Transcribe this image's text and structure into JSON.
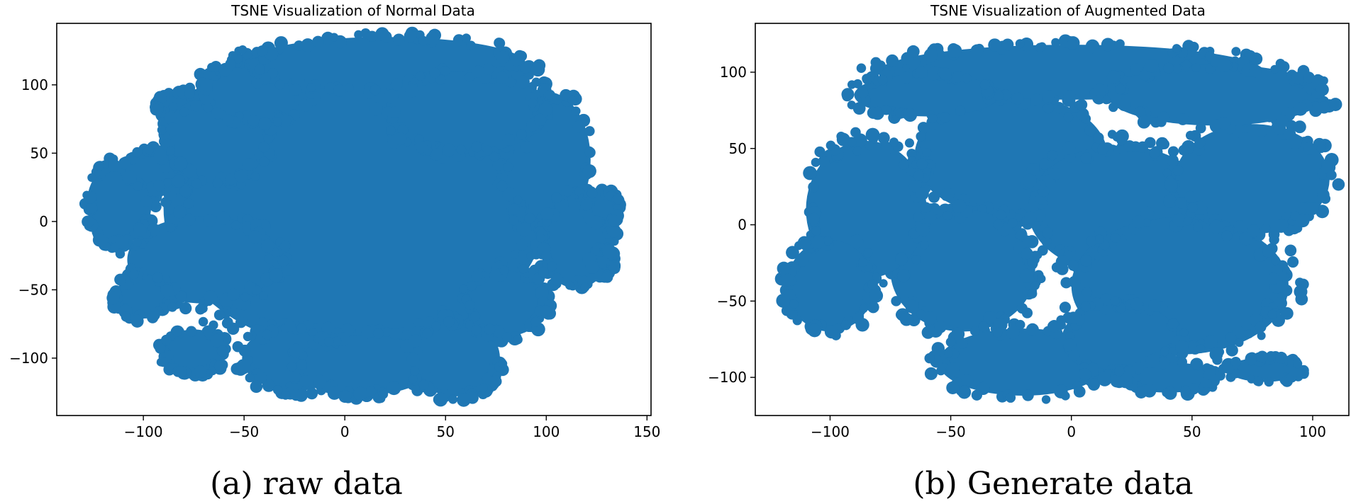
{
  "chart_data": [
    {
      "type": "scatter",
      "title": "TSNE Visualization of Normal Data",
      "caption": "(a) raw data",
      "xlabel": "",
      "ylabel": "",
      "xlim": [
        -143,
        152
      ],
      "ylim": [
        -142,
        145
      ],
      "xticks": [
        -100,
        -50,
        0,
        50,
        100,
        150
      ],
      "yticks": [
        -100,
        -50,
        0,
        50,
        100
      ],
      "xtick_labels": [
        "−100",
        "−50",
        "0",
        "50",
        "100",
        "150"
      ],
      "ytick_labels": [
        "−100",
        "−50",
        "0",
        "50",
        "100"
      ],
      "color": "#1f77b4",
      "series": [
        {
          "name": "points",
          "clusters": [
            {
              "cx": 5,
              "cy": 10,
              "rx": 95,
              "ry": 105
            },
            {
              "cx": -112,
              "cy": 13,
              "rx": 16,
              "ry": 30
            },
            {
              "cx": -95,
              "cy": 38,
              "rx": 14,
              "ry": 14
            },
            {
              "cx": -83,
              "cy": 85,
              "rx": 10,
              "ry": 10
            },
            {
              "cx": -64,
              "cy": 60,
              "rx": 26,
              "ry": 32
            },
            {
              "cx": -45,
              "cy": 95,
              "rx": 28,
              "ry": 22
            },
            {
              "cx": -70,
              "cy": -28,
              "rx": 38,
              "ry": 32
            },
            {
              "cx": -100,
              "cy": -55,
              "rx": 14,
              "ry": 16
            },
            {
              "cx": -75,
              "cy": -95,
              "rx": 16,
              "ry": 16
            },
            {
              "cx": -25,
              "cy": -100,
              "rx": 26,
              "ry": 24
            },
            {
              "cx": 10,
              "cy": -105,
              "rx": 34,
              "ry": 22
            },
            {
              "cx": 55,
              "cy": -100,
              "rx": 22,
              "ry": 28
            },
            {
              "cx": 80,
              "cy": -60,
              "rx": 20,
              "ry": 24
            },
            {
              "cx": 100,
              "cy": 45,
              "rx": 22,
              "ry": 50
            },
            {
              "cx": 115,
              "cy": -15,
              "rx": 18,
              "ry": 34
            },
            {
              "cx": 128,
              "cy": 10,
              "rx": 8,
              "ry": 12
            },
            {
              "cx": 128,
              "cy": -30,
              "rx": 6,
              "ry": 10
            },
            {
              "cx": 20,
              "cy": 115,
              "rx": 70,
              "ry": 20
            },
            {
              "cx": 60,
              "cy": 80,
              "rx": 40,
              "ry": 30
            }
          ]
        }
      ]
    },
    {
      "type": "scatter",
      "title": "TSNE Visualization of Augmented Data",
      "caption": "(b) Generate data",
      "xlabel": "",
      "ylabel": "",
      "xlim": [
        -131,
        115
      ],
      "ylim": [
        -125,
        132
      ],
      "xticks": [
        -100,
        -50,
        0,
        50,
        100
      ],
      "yticks": [
        -100,
        -50,
        0,
        50,
        100
      ],
      "xtick_labels": [
        "−100",
        "−50",
        "0",
        "50",
        "100"
      ],
      "ytick_labels": [
        "−100",
        "−50",
        "0",
        "50",
        "100"
      ],
      "color": "#1f77b4",
      "series": [
        {
          "name": "points",
          "clusters": [
            {
              "cx": -25,
              "cy": 45,
              "rx": 40,
              "ry": 40
            },
            {
              "cx": 20,
              "cy": 10,
              "rx": 38,
              "ry": 42
            },
            {
              "cx": 45,
              "cy": -40,
              "rx": 45,
              "ry": 45
            },
            {
              "cx": 75,
              "cy": 30,
              "rx": 32,
              "ry": 36
            },
            {
              "cx": -45,
              "cy": -30,
              "rx": 30,
              "ry": 40
            },
            {
              "cx": -85,
              "cy": 10,
              "rx": 25,
              "ry": 45
            },
            {
              "cx": -100,
              "cy": -40,
              "rx": 18,
              "ry": 30
            },
            {
              "cx": -20,
              "cy": -90,
              "rx": 35,
              "ry": 22
            },
            {
              "cx": 20,
              "cy": -75,
              "rx": 24,
              "ry": 24
            },
            {
              "cx": 0,
              "cy": 100,
              "rx": 80,
              "ry": 18
            },
            {
              "cx": 60,
              "cy": 85,
              "rx": 45,
              "ry": 20
            },
            {
              "cx": -60,
              "cy": 85,
              "rx": 30,
              "ry": 14
            },
            {
              "cx": 40,
              "cy": -100,
              "rx": 20,
              "ry": 10
            },
            {
              "cx": 80,
              "cy": -95,
              "rx": 15,
              "ry": 8
            }
          ]
        }
      ]
    }
  ]
}
